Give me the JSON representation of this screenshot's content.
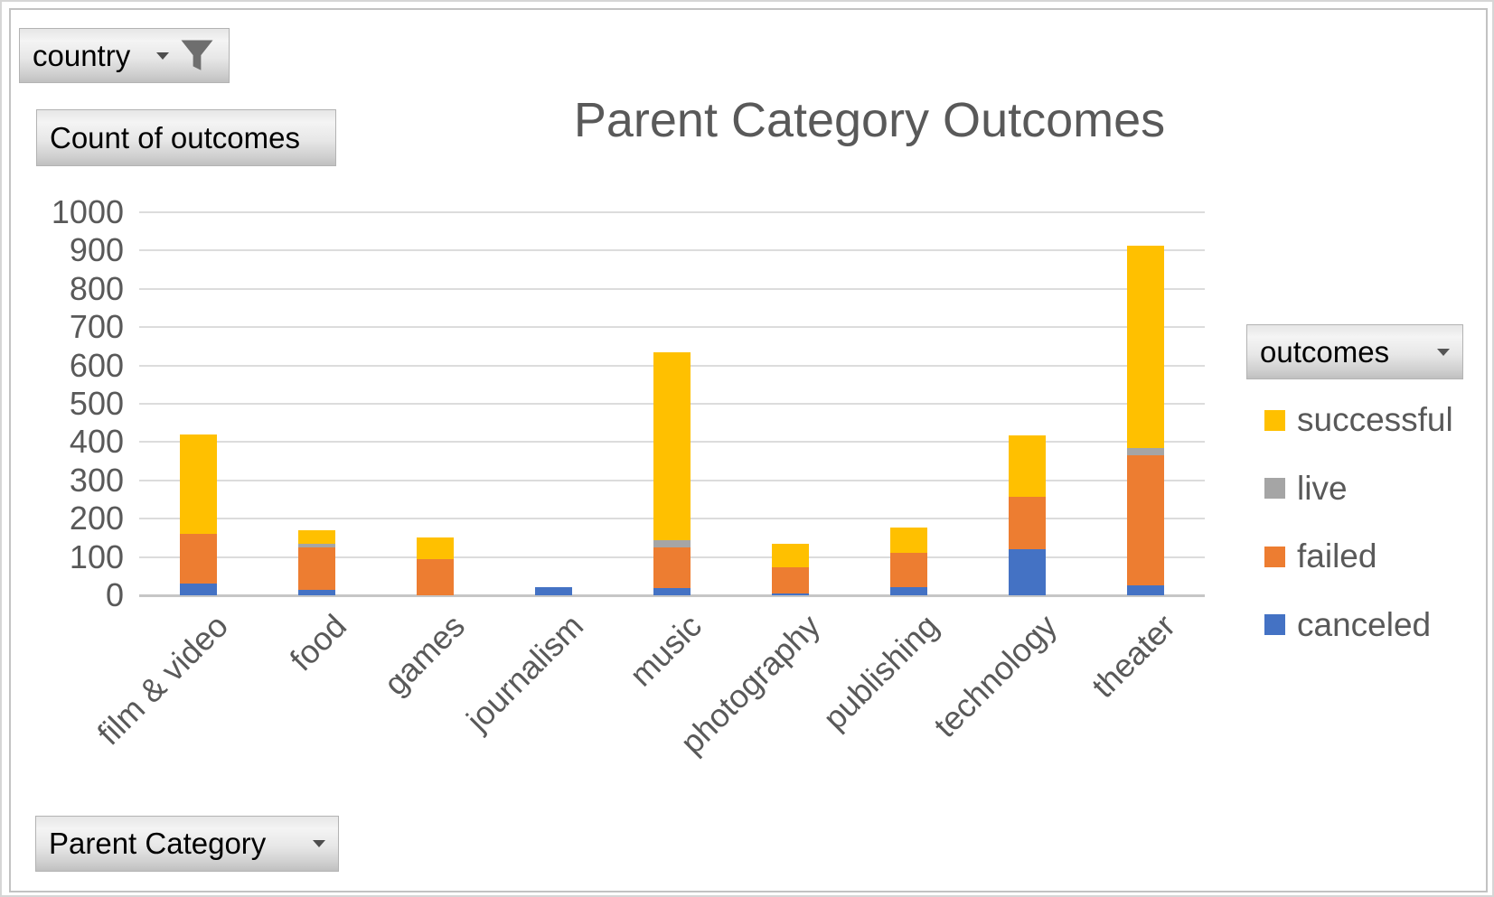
{
  "buttons": {
    "report_filter": {
      "label": "country"
    },
    "values": {
      "label": "Count of outcomes"
    },
    "legend_field": {
      "label": "outcomes"
    },
    "axis_field": {
      "label": "Parent Category"
    }
  },
  "chart_data": {
    "type": "bar",
    "stacked": true,
    "title": "Parent Category Outcomes",
    "categories": [
      "film & video",
      "food",
      "games",
      "journalism",
      "music",
      "photography",
      "publishing",
      "technology",
      "theater"
    ],
    "series": [
      {
        "name": "canceled",
        "color": "#4472C4",
        "values": [
          30,
          15,
          0,
          22,
          20,
          5,
          22,
          120,
          27
        ]
      },
      {
        "name": "failed",
        "color": "#ED7D31",
        "values": [
          130,
          110,
          95,
          0,
          105,
          67,
          88,
          137,
          338
        ]
      },
      {
        "name": "live",
        "color": "#A5A5A5",
        "values": [
          0,
          10,
          0,
          0,
          20,
          0,
          0,
          0,
          20
        ]
      },
      {
        "name": "successful",
        "color": "#FFC000",
        "values": [
          260,
          35,
          55,
          0,
          490,
          63,
          68,
          160,
          527
        ]
      }
    ],
    "legend": [
      "successful",
      "live",
      "failed",
      "canceled"
    ],
    "legend_position": "right",
    "y_axis": {
      "min": 0,
      "max": 1000,
      "interval": 100,
      "tick_labels": [
        "0",
        "100",
        "200",
        "300",
        "400",
        "500",
        "600",
        "700",
        "800",
        "900",
        "1000"
      ]
    },
    "grid": true
  },
  "colors": {
    "gridline": "#dcdcdc",
    "axis_line": "#c6c6c6",
    "text": "#595959"
  }
}
